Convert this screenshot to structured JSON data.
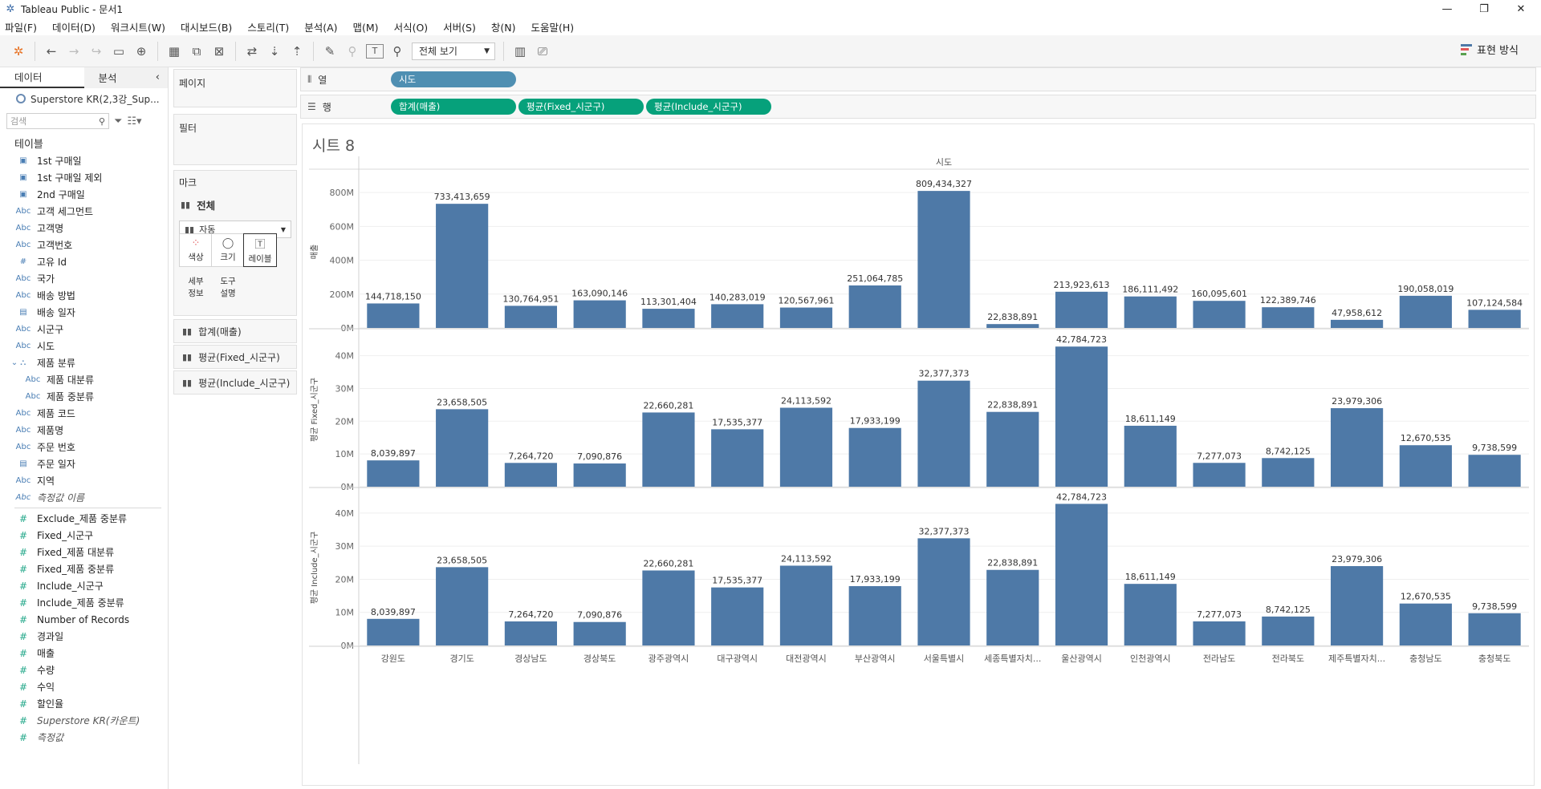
{
  "window": {
    "title": "Tableau Public - 문서1"
  },
  "menu": [
    "파일(F)",
    "데이터(D)",
    "워크시트(W)",
    "대시보드(B)",
    "스토리(T)",
    "분석(A)",
    "맵(M)",
    "서식(O)",
    "서버(S)",
    "창(N)",
    "도움말(H)"
  ],
  "toolbar": {
    "fit_select": "전체 보기",
    "show_me": "표현 방식"
  },
  "data_pane": {
    "tab_data": "데이터",
    "tab_analysis": "분석",
    "source": "Superstore KR(2,3강_Sup...",
    "search_placeholder": "검색",
    "tables_heading": "테이블",
    "dimensions": [
      {
        "icon": "date",
        "label": "1st 구매일"
      },
      {
        "icon": "date",
        "label": "1st 구매일 제외"
      },
      {
        "icon": "date",
        "label": "2nd 구매일"
      },
      {
        "icon": "abc",
        "label": "고객 세그먼트"
      },
      {
        "icon": "abc",
        "label": "고객명"
      },
      {
        "icon": "abc",
        "label": "고객번호"
      },
      {
        "icon": "num",
        "label": "고유 Id"
      },
      {
        "icon": "abc",
        "label": "국가"
      },
      {
        "icon": "abc",
        "label": "배송 방법"
      },
      {
        "icon": "cal",
        "label": "배송 일자"
      },
      {
        "icon": "abc",
        "label": "시군구"
      },
      {
        "icon": "abc",
        "label": "시도"
      },
      {
        "icon": "hier",
        "label": "제품 분류"
      },
      {
        "icon": "abc",
        "label": "제품 대분류",
        "indent": true
      },
      {
        "icon": "abc",
        "label": "제품 중분류",
        "indent": true
      },
      {
        "icon": "abc",
        "label": "제품 코드"
      },
      {
        "icon": "abc",
        "label": "제품명"
      },
      {
        "icon": "abc",
        "label": "주문 번호"
      },
      {
        "icon": "cal",
        "label": "주문 일자"
      },
      {
        "icon": "abc",
        "label": "지역"
      },
      {
        "icon": "abc",
        "label": "측정값 이름",
        "italic": true
      }
    ],
    "measures": [
      {
        "label": "Exclude_제품 중분류"
      },
      {
        "label": "Fixed_시군구"
      },
      {
        "label": "Fixed_제품 대분류"
      },
      {
        "label": "Fixed_제품 중분류"
      },
      {
        "label": "Include_시군구"
      },
      {
        "label": "Include_제품 중분류"
      },
      {
        "label": "Number of Records"
      },
      {
        "label": "경과일"
      },
      {
        "label": "매출"
      },
      {
        "label": "수량"
      },
      {
        "label": "수익"
      },
      {
        "label": "할인율"
      },
      {
        "label": "Superstore KR(카운트)",
        "italic": true
      },
      {
        "label": "측정값",
        "italic": true
      }
    ]
  },
  "cards": {
    "pages": "페이지",
    "filters": "필터",
    "marks": "마크",
    "marks_all": "전체",
    "mark_type": "자동",
    "buttons": {
      "color": "색상",
      "size": "크기",
      "label": "레이블",
      "detail": "세부\n정보",
      "tooltip": "도구\n설명"
    },
    "mark_pills": [
      "합계(매출)",
      "평균(Fixed_시군구)",
      "평균(Include_시군구)"
    ]
  },
  "shelves": {
    "columns_label": "열",
    "rows_label": "행",
    "columns": [
      "시도"
    ],
    "rows": [
      "합계(매출)",
      "평균(Fixed_시군구)",
      "평균(Include_시군구)"
    ]
  },
  "sheet": {
    "title": "시트 8"
  },
  "chart_data": {
    "type": "bar",
    "header": "시도",
    "categories": [
      "강원도",
      "경기도",
      "경상남도",
      "경상북도",
      "광주광역시",
      "대구광역시",
      "대전광역시",
      "부산광역시",
      "서울특별시",
      "세종특별자치...",
      "울산광역시",
      "인천광역시",
      "전라남도",
      "전라북도",
      "제주특별자치...",
      "충청남도",
      "충청북도"
    ],
    "color": "#4e79a7",
    "panes": [
      {
        "ylabel": "매출",
        "ylim": [
          0,
          900000000
        ],
        "ticks": [
          0,
          200000000,
          400000000,
          600000000,
          800000000
        ],
        "tick_labels": [
          "0M",
          "200M",
          "400M",
          "600M",
          "800M"
        ],
        "values": [
          144718150,
          733413659,
          130764951,
          163090146,
          113301404,
          140283019,
          120567961,
          251064785,
          809434327,
          22838891,
          213923613,
          186111492,
          160095601,
          122389746,
          47958612,
          190058019,
          107124584
        ],
        "labels": [
          "144,718,150",
          "733,413,659",
          "130,764,951",
          "163,090,146",
          "113,301,404",
          "140,283,019",
          "120,567,961",
          "251,064,785",
          "809,434,327",
          "22,838,891",
          "213,923,613",
          "186,111,492",
          "160,095,601",
          "122,389,746",
          "47,958,612",
          "190,058,019",
          "107,124,584"
        ]
      },
      {
        "ylabel": "평균 Fixed_시군구",
        "ylim": [
          0,
          47000000
        ],
        "ticks": [
          0,
          10000000,
          20000000,
          30000000,
          40000000
        ],
        "tick_labels": [
          "0M",
          "10M",
          "20M",
          "30M",
          "40M"
        ],
        "values": [
          8039897,
          23658505,
          7264720,
          7090876,
          22660281,
          17535377,
          24113592,
          17933199,
          32377373,
          22838891,
          42784723,
          18611149,
          7277073,
          8742125,
          23979306,
          12670535,
          9738599
        ],
        "labels": [
          "8,039,897",
          "23,658,505",
          "7,264,720",
          "7,090,876",
          "22,660,281",
          "17,535,377",
          "24,113,592",
          "17,933,199",
          "32,377,373",
          "22,838,891",
          "42,784,723",
          "18,611,149",
          "7,277,073",
          "8,742,125",
          "23,979,306",
          "12,670,535",
          "9,738,599"
        ]
      },
      {
        "ylabel": "평균 Include_시군구",
        "ylim": [
          0,
          47000000
        ],
        "ticks": [
          0,
          10000000,
          20000000,
          30000000,
          40000000
        ],
        "tick_labels": [
          "0M",
          "10M",
          "20M",
          "30M",
          "40M"
        ],
        "values": [
          8039897,
          23658505,
          7264720,
          7090876,
          22660281,
          17535377,
          24113592,
          17933199,
          32377373,
          22838891,
          42784723,
          18611149,
          7277073,
          8742125,
          23979306,
          12670535,
          9738599
        ],
        "labels": [
          "8,039,897",
          "23,658,505",
          "7,264,720",
          "7,090,876",
          "22,660,281",
          "17,535,377",
          "24,113,592",
          "17,933,199",
          "32,377,373",
          "22,838,891",
          "42,784,723",
          "18,611,149",
          "7,277,073",
          "8,742,125",
          "23,979,306",
          "12,670,535",
          "9,738,599"
        ]
      }
    ]
  }
}
